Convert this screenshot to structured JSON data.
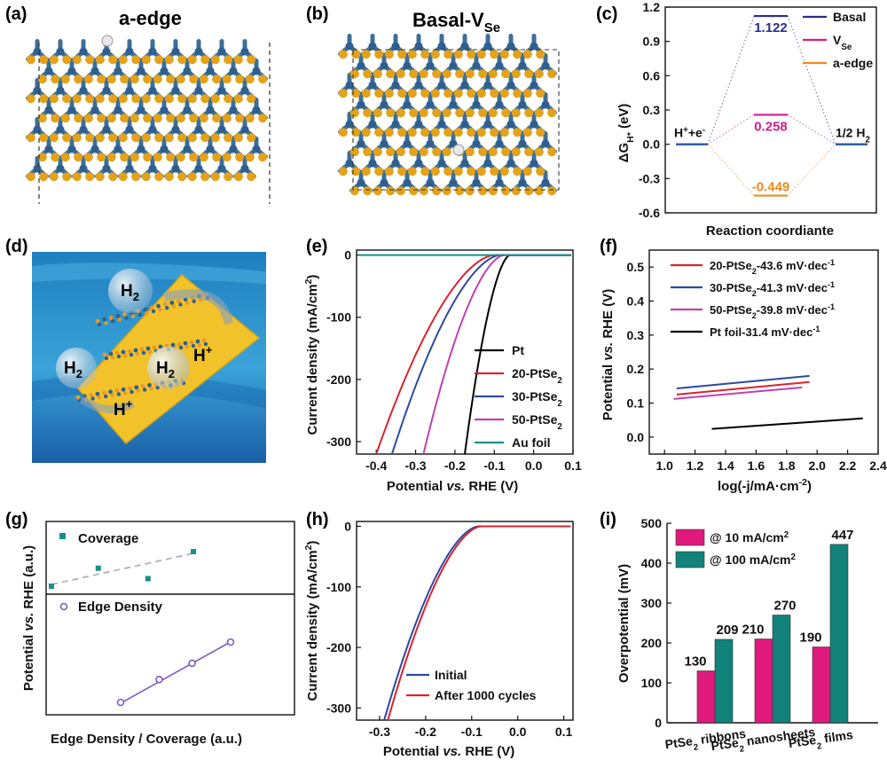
{
  "panels": {
    "a": {
      "tag": "(a)",
      "title": "a-edge"
    },
    "b": {
      "tag": "(b)",
      "title": "Basal-V",
      "title_sub": "Se"
    },
    "c": {
      "tag": "(c)"
    },
    "d": {
      "tag": "(d)",
      "labels": {
        "h2": "H2",
        "hplus": "H+"
      }
    },
    "e": {
      "tag": "(e)"
    },
    "f": {
      "tag": "(f)"
    },
    "g": {
      "tag": "(g)"
    },
    "h": {
      "tag": "(h)"
    },
    "i": {
      "tag": "(i)"
    }
  },
  "colors": {
    "pt": "#000000",
    "pt20": "#d9232d",
    "pt30": "#2b4aa0",
    "pt50": "#c040b0",
    "au": "#149090",
    "basal": "#2c2c8c",
    "vse": "#d41c8c",
    "aedge": "#ee8a1c",
    "coverage": "#16918c",
    "edge": "#7b5cc4",
    "bar10": "#e0197d",
    "bar100": "#12827a",
    "ocean": "#2a8fc8",
    "sheet": "#f2c22a",
    "mo": "#2f5f8f",
    "se": "#e3a21a"
  },
  "chart_data": [
    {
      "id": "c",
      "type": "line",
      "title": "",
      "xlabel": "Reaction coordiante",
      "ylabel": "ΔG_H* (eV)",
      "ylim": [
        -0.6,
        1.2
      ],
      "yticks": [
        -0.6,
        -0.3,
        0.0,
        0.3,
        0.6,
        0.9,
        1.2
      ],
      "ytick_labels": [
        "-0.6",
        "-0.3",
        "0.0",
        "0.3",
        "0.6",
        "0.9",
        "1.2"
      ],
      "states": [
        "H⁺+e⁻",
        "",
        "1/2 H₂"
      ],
      "state_labels": {
        "left": "H+e-",
        "right": "1/2 H2"
      },
      "series": [
        {
          "name": "Basal",
          "values": [
            0,
            1.122,
            0
          ],
          "label": "1.122"
        },
        {
          "name": "VSe",
          "values": [
            0,
            0.258,
            0
          ],
          "label": "0.258"
        },
        {
          "name": "a-edge",
          "values": [
            0,
            -0.449,
            0
          ],
          "label": "-0.449"
        }
      ],
      "legend": [
        "Basal",
        "V",
        "a-edge"
      ],
      "legend_sub": "Se",
      "legend_position": "top-right"
    },
    {
      "id": "e",
      "type": "line",
      "xlabel": "Potential vs. RHE (V)",
      "ylabel": "Current density (mA/cm²)",
      "xlim": [
        -0.45,
        0.1
      ],
      "ylim": [
        -320,
        8
      ],
      "xticks": [
        -0.4,
        -0.3,
        -0.2,
        -0.1,
        0.0,
        0.1
      ],
      "xtick_labels": [
        "-0.4",
        "-0.3",
        "-0.2",
        "-0.1",
        "0.0",
        "0.1"
      ],
      "yticks": [
        0,
        -100,
        -200,
        -300
      ],
      "ytick_labels": [
        "0",
        "-100",
        "-200",
        "-300"
      ],
      "series": [
        {
          "name": "Pt",
          "key": "pt",
          "onset": -0.06,
          "end": -0.175
        },
        {
          "name": "20-PtSe2",
          "key": "pt20",
          "onset": -0.1,
          "end": -0.4
        },
        {
          "name": "30-PtSe2",
          "key": "pt30",
          "onset": -0.085,
          "end": -0.36
        },
        {
          "name": "50-PtSe2",
          "key": "pt50",
          "onset": -0.075,
          "end": -0.28
        },
        {
          "name": "Au foil",
          "key": "au",
          "onset": null,
          "end": null
        }
      ],
      "legend_labels": [
        "Pt",
        "20-PtSe",
        "30-PtSe",
        "50-PtSe",
        "Au foil"
      ],
      "legend_position": "bottom-right"
    },
    {
      "id": "f",
      "type": "line",
      "xlabel": "log(-j/mA·cm⁻²)",
      "ylabel": "Potential vs. RHE (V)",
      "xlim": [
        0.9,
        2.4
      ],
      "ylim": [
        -0.05,
        0.55
      ],
      "xticks": [
        1.0,
        1.2,
        1.4,
        1.6,
        1.8,
        2.0,
        2.2,
        2.4
      ],
      "xtick_labels": [
        "1.0",
        "1.2",
        "1.4",
        "1.6",
        "1.8",
        "2.0",
        "2.2",
        "2.4"
      ],
      "yticks": [
        0.0,
        0.1,
        0.2,
        0.3,
        0.4,
        0.5
      ],
      "ytick_labels": [
        "0.0",
        "0.1",
        "0.2",
        "0.3",
        "0.4",
        "0.5"
      ],
      "series": [
        {
          "name": "20-PtSe2-43.6 mV·dec-1",
          "key": "pt20",
          "x": [
            1.08,
            1.95
          ],
          "y": [
            0.125,
            0.162
          ]
        },
        {
          "name": "30-PtSe2-41.3 mV·dec-1",
          "key": "pt30",
          "x": [
            1.08,
            1.95
          ],
          "y": [
            0.143,
            0.18
          ]
        },
        {
          "name": "50-PtSe2-39.8 mV·dec-1",
          "key": "pt50",
          "x": [
            1.06,
            1.9
          ],
          "y": [
            0.112,
            0.146
          ]
        },
        {
          "name": "Pt foil-31.4 mV·dec-1",
          "key": "pt",
          "x": [
            1.31,
            2.3
          ],
          "y": [
            0.024,
            0.055
          ]
        }
      ],
      "legend_labels": [
        {
          "pre": "20-PtSe",
          "post": "-43.6 mV·dec"
        },
        {
          "pre": "30-PtSe",
          "post": "-41.3 mV·dec"
        },
        {
          "pre": "50-PtSe",
          "post": "-39.8 mV·dec"
        },
        {
          "pre": "Pt foil",
          "post": "-31.4 mV·dec"
        }
      ],
      "legend_position": "top-left"
    },
    {
      "id": "g",
      "type": "scatter",
      "xlabel": "Edge Density / Coverage (a.u.)",
      "ylabel": "Potential vs. RHE (a.u.)",
      "series": [
        {
          "name": "Coverage",
          "key": "coverage",
          "x": [
            0.0,
            0.33,
            0.68,
            1.0
          ],
          "y": [
            0.0,
            0.52,
            0.22,
            1.0
          ]
        },
        {
          "name": "Edge Density",
          "key": "edge",
          "x": [
            0.0,
            0.35,
            0.65,
            1.0
          ],
          "y": [
            0.0,
            0.38,
            0.65,
            1.0
          ]
        }
      ]
    },
    {
      "id": "h",
      "type": "line",
      "xlabel": "Potential vs. RHE (V)",
      "ylabel": "Current density (mA/cm²)",
      "xlim": [
        -0.35,
        0.12
      ],
      "ylim": [
        -320,
        8
      ],
      "xticks": [
        -0.3,
        -0.2,
        -0.1,
        0.0,
        0.1
      ],
      "xtick_labels": [
        "-0.3",
        "-0.2",
        "-0.1",
        "0.0",
        "0.1"
      ],
      "yticks": [
        0,
        -100,
        -200,
        -300
      ],
      "ytick_labels": [
        "0",
        "-100",
        "-200",
        "-300"
      ],
      "series": [
        {
          "name": "Initial",
          "key": "pt30",
          "onset": -0.085,
          "end": -0.29
        },
        {
          "name": "After 1000 cycles",
          "key": "pt20",
          "onset": -0.08,
          "end": -0.282
        }
      ],
      "legend_position": "bottom-right"
    },
    {
      "id": "i",
      "type": "bar",
      "ylabel": "Overpotential (mV)",
      "ylim": [
        0,
        500
      ],
      "yticks": [
        0,
        100,
        200,
        300,
        400,
        500
      ],
      "ytick_labels": [
        "0",
        "100",
        "200",
        "300",
        "400",
        "500"
      ],
      "categories": [
        "PtSe2 ribbons",
        "PtSe2 nanosheets",
        "PtSe2 films"
      ],
      "series": [
        {
          "name": "@ 10 mA/cm2",
          "key": "bar10",
          "values": [
            130,
            210,
            190
          ],
          "labels": [
            "130",
            "210",
            "190"
          ]
        },
        {
          "name": "@ 100 mA/cm2",
          "key": "bar100",
          "values": [
            209,
            270,
            447
          ],
          "labels": [
            "209",
            "270",
            "447"
          ]
        }
      ],
      "legend_labels": [
        "@ 10 mA/cm",
        "@ 100 mA/cm"
      ],
      "legend_position": "top-left"
    }
  ]
}
